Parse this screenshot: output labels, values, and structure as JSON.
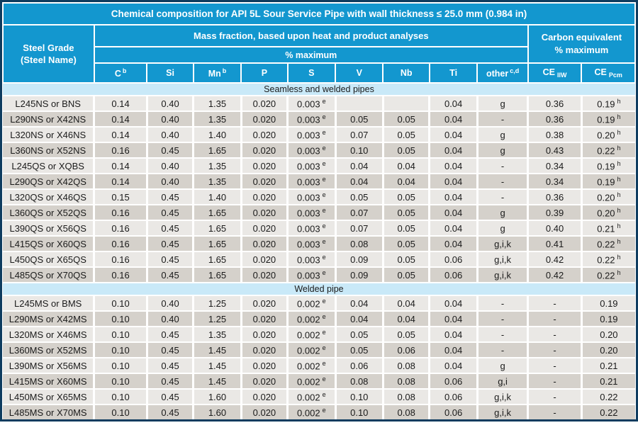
{
  "title": "Chemical composition for API 5L Sour Service Pipe with wall thickness ≤ 25.0 mm (0.984 in)",
  "header": {
    "steel_grade_line1": "Steel Grade",
    "steel_grade_line2": "(Steel Name)",
    "mass_fraction": "Mass fraction, based upon heat and product analyses",
    "pct_maximum": "% maximum",
    "carbon_equiv_line1": "Carbon equivalent",
    "carbon_equiv_line2": "% maximum",
    "columns": [
      {
        "text": "C",
        "sup": "b"
      },
      {
        "text": "Si"
      },
      {
        "text": "Mn",
        "sup": "b"
      },
      {
        "text": "P"
      },
      {
        "text": "S"
      },
      {
        "text": "V"
      },
      {
        "text": "Nb"
      },
      {
        "text": "Ti"
      },
      {
        "text": "other",
        "sup": "c,d"
      },
      {
        "text": "CE",
        "sub": "IIW"
      },
      {
        "text": "CE",
        "sub": "Pcm"
      }
    ]
  },
  "chart_data": {
    "type": "table",
    "title": "Chemical composition for API 5L Sour Service Pipe with wall thickness ≤ 25.0 mm (0.984 in)",
    "columns": [
      "Steel Grade (Steel Name)",
      "C",
      "Si",
      "Mn",
      "P",
      "S",
      "V",
      "Nb",
      "Ti",
      "other",
      "CE IIW",
      "CE Pcm"
    ],
    "sections": [
      {
        "label": "Seamless and welded pipes",
        "rows": [
          {
            "grade": "L245NS or BNS",
            "values": [
              "0.14",
              "0.40",
              "1.35",
              "0.020",
              "0.003^e",
              "",
              "",
              "0.04",
              "g",
              "0.36",
              "0.19^h"
            ]
          },
          {
            "grade": "L290NS or X42NS",
            "values": [
              "0.14",
              "0.40",
              "1.35",
              "0.020",
              "0.003^e",
              "0.05",
              "0.05",
              "0.04",
              "-",
              "0.36",
              "0.19^h"
            ]
          },
          {
            "grade": "L320NS or X46NS",
            "values": [
              "0.14",
              "0.40",
              "1.40",
              "0.020",
              "0.003^e",
              "0.07",
              "0.05",
              "0.04",
              "g",
              "0.38",
              "0.20^h"
            ]
          },
          {
            "grade": "L360NS or X52NS",
            "values": [
              "0.16",
              "0.45",
              "1.65",
              "0.020",
              "0.003^e",
              "0.10",
              "0.05",
              "0.04",
              "g",
              "0.43",
              "0.22^h"
            ]
          },
          {
            "grade": "L245QS or XQBS",
            "values": [
              "0.14",
              "0.40",
              "1.35",
              "0.020",
              "0.003^e",
              "0.04",
              "0.04",
              "0.04",
              "-",
              "0.34",
              "0.19^h"
            ]
          },
          {
            "grade": "L290QS or X42QS",
            "values": [
              "0.14",
              "0.40",
              "1.35",
              "0.020",
              "0.003^e",
              "0.04",
              "0.04",
              "0.04",
              "-",
              "0.34",
              "0.19^h"
            ]
          },
          {
            "grade": "L320QS or X46QS",
            "values": [
              "0.15",
              "0.45",
              "1.40",
              "0.020",
              "0.003^e",
              "0.05",
              "0.05",
              "0.04",
              "-",
              "0.36",
              "0.20^h"
            ]
          },
          {
            "grade": "L360QS or X52QS",
            "values": [
              "0.16",
              "0.45",
              "1.65",
              "0.020",
              "0.003^e",
              "0.07",
              "0.05",
              "0.04",
              "g",
              "0.39",
              "0.20^h"
            ]
          },
          {
            "grade": "L390QS or X56QS",
            "values": [
              "0.16",
              "0.45",
              "1.65",
              "0.020",
              "0.003^e",
              "0.07",
              "0.05",
              "0.04",
              "g",
              "0.40",
              "0.21^h"
            ]
          },
          {
            "grade": "L415QS or X60QS",
            "values": [
              "0.16",
              "0.45",
              "1.65",
              "0.020",
              "0.003^e",
              "0.08",
              "0.05",
              "0.04",
              "g,i,k",
              "0.41",
              "0.22^h"
            ]
          },
          {
            "grade": "L450QS or X65QS",
            "values": [
              "0.16",
              "0.45",
              "1.65",
              "0.020",
              "0.003^e",
              "0.09",
              "0.05",
              "0.06",
              "g,i,k",
              "0.42",
              "0.22^h"
            ]
          },
          {
            "grade": "L485QS or X70QS",
            "values": [
              "0.16",
              "0.45",
              "1.65",
              "0.020",
              "0.003^e",
              "0.09",
              "0.05",
              "0.06",
              "g,i,k",
              "0.42",
              "0.22^h"
            ]
          }
        ]
      },
      {
        "label": "Welded pipe",
        "rows": [
          {
            "grade": "L245MS or BMS",
            "values": [
              "0.10",
              "0.40",
              "1.25",
              "0.020",
              "0.002^e",
              "0.04",
              "0.04",
              "0.04",
              "-",
              "-",
              "0.19"
            ]
          },
          {
            "grade": "L290MS or X42MS",
            "values": [
              "0.10",
              "0.40",
              "1.25",
              "0.020",
              "0.002^e",
              "0.04",
              "0.04",
              "0.04",
              "-",
              "-",
              "0.19"
            ]
          },
          {
            "grade": "L320MS or X46MS",
            "values": [
              "0.10",
              "0.45",
              "1.35",
              "0.020",
              "0.002^e",
              "0.05",
              "0.05",
              "0.04",
              "-",
              "-",
              "0.20"
            ]
          },
          {
            "grade": "L360MS or X52MS",
            "values": [
              "0.10",
              "0.45",
              "1.45",
              "0.020",
              "0.002^e",
              "0.05",
              "0.06",
              "0.04",
              "-",
              "-",
              "0.20"
            ]
          },
          {
            "grade": "L390MS or X56MS",
            "values": [
              "0.10",
              "0.45",
              "1.45",
              "0.020",
              "0.002^e",
              "0.06",
              "0.08",
              "0.04",
              "g",
              "-",
              "0.21"
            ]
          },
          {
            "grade": "L415MS or X60MS",
            "values": [
              "0.10",
              "0.45",
              "1.45",
              "0.020",
              "0.002^e",
              "0.08",
              "0.08",
              "0.06",
              "g,i",
              "-",
              "0.21"
            ]
          },
          {
            "grade": "L450MS or X65MS",
            "values": [
              "0.10",
              "0.45",
              "1.60",
              "0.020",
              "0.002^e",
              "0.10",
              "0.08",
              "0.06",
              "g,i,k",
              "-",
              "0.22"
            ]
          },
          {
            "grade": "L485MS or X70MS",
            "values": [
              "0.10",
              "0.45",
              "1.60",
              "0.020",
              "0.002^e",
              "0.10",
              "0.08",
              "0.06",
              "g,i,k",
              "-",
              "0.22"
            ]
          }
        ]
      }
    ]
  },
  "colors": {
    "header_bg": "#1397CF",
    "outer_border": "#0E3C5F",
    "section_band_bg": "#C9E9F8",
    "row_light_bg": "#EAE8E5",
    "row_dark_bg": "#D5D1CB",
    "header_text": "#FFFFFF",
    "body_text": "#1B1B1B"
  }
}
